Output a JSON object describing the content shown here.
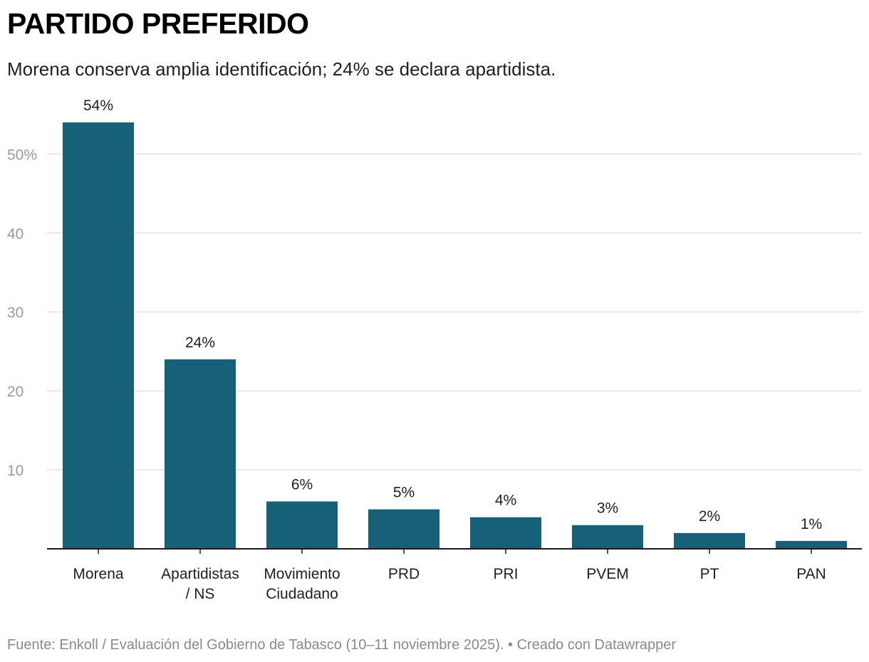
{
  "header": {
    "title": "PARTIDO PREFERIDO",
    "subtitle": "Morena conserva amplia identificación; 24% se declara apartidista."
  },
  "footer": {
    "source_text": "Fuente: Enkoll / Evaluación del Gobierno de Tabasco (10–11 noviembre 2025). • Creado con Datawrapper"
  },
  "colors": {
    "bar": "#166078",
    "grid": "#e2e2e2",
    "axis": "#1a1a1a",
    "tick_label": "#9a9a9a",
    "category_label": "#1f1f1f",
    "value_label": "#1f1f1f"
  },
  "chart_data": {
    "type": "bar",
    "title": "PARTIDO PREFERIDO",
    "subtitle": "Morena conserva amplia identificación; 24% se declara apartidista.",
    "xlabel": "",
    "ylabel": "",
    "categories": [
      [
        "Morena"
      ],
      [
        "Apartidistas",
        "/ NS"
      ],
      [
        "Movimiento",
        "Ciudadano"
      ],
      [
        "PRD"
      ],
      [
        "PRI"
      ],
      [
        "PVEM"
      ],
      [
        "PT"
      ],
      [
        "PAN"
      ]
    ],
    "values": [
      54,
      24,
      6,
      5,
      4,
      3,
      2,
      1
    ],
    "value_labels": [
      "54%",
      "24%",
      "6%",
      "5%",
      "4%",
      "3%",
      "2%",
      "1%"
    ],
    "ylim": [
      0,
      54
    ],
    "yticks": [
      10,
      20,
      30,
      40,
      50
    ],
    "ytick_labels": [
      "10",
      "20",
      "30",
      "40",
      "50%"
    ],
    "grid": true,
    "legend": "none"
  }
}
